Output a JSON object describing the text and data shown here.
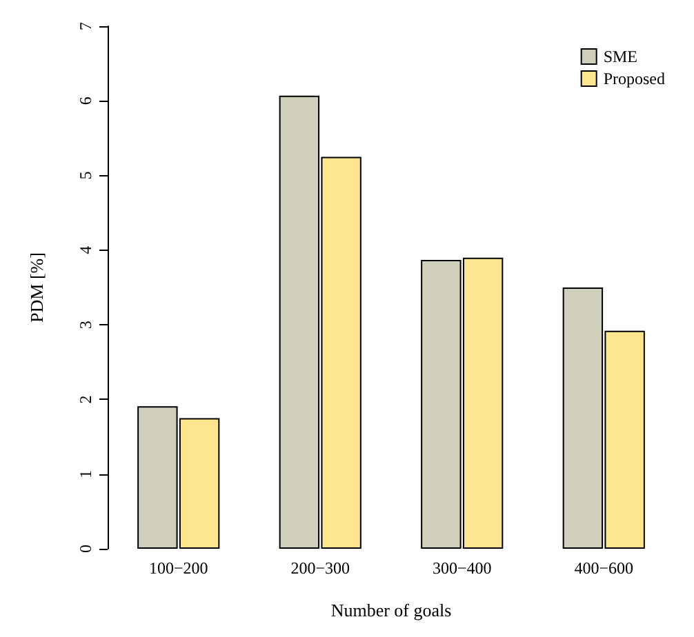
{
  "chart_data": {
    "type": "bar",
    "xlabel": "Number of goals",
    "ylabel": "PDM [%]",
    "categories": [
      "100−200",
      "200−300",
      "300−400",
      "400−600"
    ],
    "series": [
      {
        "name": "SME",
        "color": "#cfcfbb",
        "values": [
          1.91,
          6.07,
          3.87,
          3.5
        ]
      },
      {
        "name": "Proposed",
        "color": "#fee690",
        "values": [
          1.75,
          5.25,
          3.9,
          2.92
        ]
      }
    ],
    "ylim": [
      0,
      7
    ],
    "yticks": [
      0,
      1,
      2,
      3,
      4,
      5,
      6,
      7
    ],
    "grid": false,
    "legend": "top right"
  }
}
